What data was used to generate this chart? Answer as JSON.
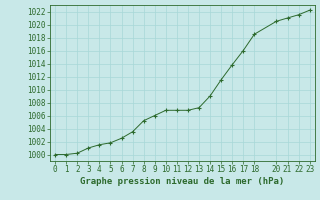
{
  "x": [
    0,
    1,
    2,
    3,
    4,
    5,
    6,
    7,
    8,
    9,
    10,
    11,
    12,
    13,
    14,
    15,
    16,
    17,
    18,
    20,
    21,
    22,
    23
  ],
  "y": [
    1000.0,
    1000.0,
    1000.2,
    1001.0,
    1001.5,
    1001.8,
    1002.5,
    1003.5,
    1005.2,
    1006.0,
    1006.8,
    1006.8,
    1006.8,
    1007.2,
    1009.0,
    1011.5,
    1013.8,
    1016.0,
    1018.5,
    1020.5,
    1021.0,
    1021.5,
    1022.2
  ],
  "xlim": [
    -0.5,
    23.5
  ],
  "ylim": [
    999.0,
    1023.0
  ],
  "yticks": [
    1000,
    1002,
    1004,
    1006,
    1008,
    1010,
    1012,
    1014,
    1016,
    1018,
    1020,
    1022
  ],
  "xticks": [
    0,
    1,
    2,
    3,
    4,
    5,
    6,
    7,
    8,
    9,
    10,
    11,
    12,
    13,
    14,
    15,
    16,
    17,
    18,
    20,
    21,
    22,
    23
  ],
  "xlabel": "Graphe pression niveau de la mer (hPa)",
  "line_color": "#2d6a2d",
  "marker": "+",
  "bg_color": "#c8e8e8",
  "grid_color": "#a8d8d8",
  "label_fontsize": 6.5,
  "tick_fontsize": 5.5
}
